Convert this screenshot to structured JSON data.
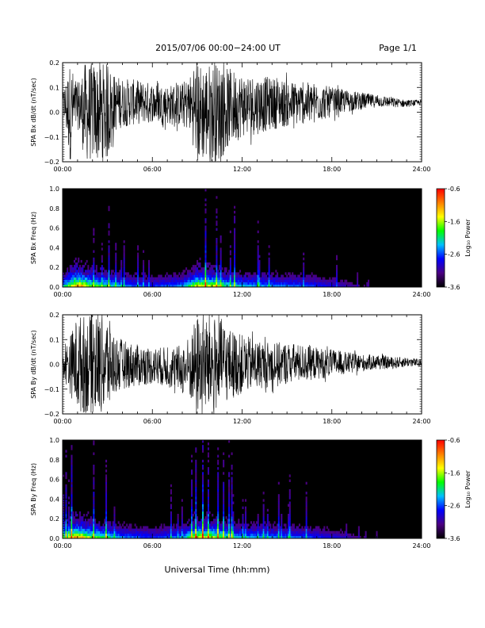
{
  "header": {
    "title": "2015/07/06  00:00−24:00 UT",
    "page": "Page 1/1"
  },
  "xaxis": {
    "label": "Universal Time (hh:mm)",
    "range": [
      0,
      24
    ],
    "ticks": [
      0,
      6,
      12,
      18,
      24
    ],
    "tick_labels": [
      "00:00",
      "06:00",
      "12:00",
      "18:00",
      "24:00"
    ]
  },
  "colorbar": {
    "label": "Log₁₀ Power",
    "range": [
      -3.6,
      -0.6
    ],
    "tick_labels": [
      "-0.6",
      "-1.6",
      "-2.6",
      "-3.6"
    ],
    "colors": [
      "#000000",
      "#4b0082",
      "#0000ff",
      "#00bfff",
      "#00ff00",
      "#ffff00",
      "#ff8000",
      "#ff0000"
    ]
  },
  "chart_data": [
    {
      "type": "line",
      "title": "",
      "ylabel": "SPA Bx dB/dt (nT/sec)",
      "xlabel": "",
      "xlim": [
        0,
        24
      ],
      "ylim": [
        -0.2,
        0.2
      ],
      "yticks": [
        -0.2,
        -0.1,
        0.0,
        0.1,
        0.2
      ],
      "ytick_labels": [
        "−0.2",
        "−0.1",
        "0.0",
        "0.1",
        "0.2"
      ],
      "envelope": {
        "x": [
          0.0,
          0.5,
          1.0,
          1.5,
          2.0,
          2.5,
          3.0,
          3.5,
          4.0,
          5.0,
          6.0,
          7.0,
          8.0,
          8.5,
          9.0,
          9.5,
          10.0,
          10.5,
          11.0,
          12.0,
          13.0,
          14.0,
          15.0,
          16.0,
          17.0,
          18.0,
          19.0,
          20.0,
          21.0,
          22.0,
          23.0,
          24.0
        ],
        "high": [
          0.08,
          0.2,
          0.12,
          0.2,
          0.2,
          0.2,
          0.2,
          0.15,
          0.14,
          0.13,
          0.12,
          0.11,
          0.12,
          0.15,
          0.2,
          0.2,
          0.2,
          0.2,
          0.18,
          0.16,
          0.15,
          0.14,
          0.13,
          0.12,
          0.12,
          0.1,
          0.09,
          0.08,
          0.07,
          0.06,
          0.05,
          0.05
        ],
        "low": [
          0.0,
          -0.2,
          -0.06,
          -0.2,
          -0.2,
          -0.2,
          -0.2,
          -0.08,
          -0.06,
          -0.05,
          -0.04,
          -0.05,
          -0.06,
          -0.08,
          -0.2,
          -0.2,
          -0.2,
          -0.2,
          -0.15,
          -0.1,
          -0.09,
          -0.07,
          -0.06,
          -0.05,
          -0.04,
          -0.02,
          0.0,
          0.01,
          0.02,
          0.02,
          0.02,
          0.03
        ]
      }
    },
    {
      "type": "heatmap",
      "title": "",
      "ylabel": "SPA Bx Freq (Hz)",
      "xlabel": "",
      "xlim": [
        0,
        24
      ],
      "ylim": [
        0.0,
        1.0
      ],
      "yticks": [
        0.0,
        0.2,
        0.4,
        0.6,
        0.8,
        1.0
      ],
      "ytick_labels": [
        "0.0",
        "0.2",
        "0.4",
        "0.6",
        "0.8",
        "1.0"
      ],
      "zlim": [
        -3.6,
        -0.6
      ],
      "activity": {
        "x": [
          0,
          1,
          1.5,
          2,
          3,
          4,
          6,
          8,
          9,
          10,
          11,
          12,
          14,
          16,
          18,
          20,
          24
        ],
        "level": [
          0.5,
          1.0,
          0.85,
          0.7,
          0.6,
          0.45,
          0.35,
          0.45,
          0.85,
          0.8,
          0.6,
          0.5,
          0.45,
          0.4,
          0.3,
          0.15,
          0.05
        ]
      }
    },
    {
      "type": "line",
      "title": "",
      "ylabel": "SPA By dB/dt (nT/sec)",
      "xlabel": "",
      "xlim": [
        0,
        24
      ],
      "ylim": [
        -0.2,
        0.2
      ],
      "yticks": [
        -0.2,
        -0.1,
        0.0,
        0.1,
        0.2
      ],
      "ytick_labels": [
        "−0.2",
        "−0.1",
        "0.0",
        "0.1",
        "0.2"
      ],
      "envelope": {
        "x": [
          0.0,
          0.5,
          1.0,
          1.5,
          2.0,
          2.5,
          3.0,
          3.5,
          4.0,
          5.0,
          6.0,
          7.0,
          8.0,
          8.5,
          9.0,
          9.5,
          10.0,
          10.5,
          11.0,
          12.0,
          13.0,
          14.0,
          15.0,
          16.0,
          17.0,
          18.0,
          19.0,
          20.0,
          21.0,
          22.0,
          23.0,
          24.0
        ],
        "high": [
          0.05,
          0.12,
          0.2,
          0.2,
          0.2,
          0.2,
          0.2,
          0.12,
          0.1,
          0.08,
          0.07,
          0.07,
          0.08,
          0.12,
          0.2,
          0.2,
          0.2,
          0.18,
          0.15,
          0.12,
          0.1,
          0.09,
          0.09,
          0.08,
          0.07,
          0.06,
          0.05,
          0.04,
          0.04,
          0.03,
          0.03,
          0.02
        ],
        "low": [
          -0.05,
          -0.12,
          -0.2,
          -0.2,
          -0.2,
          -0.2,
          -0.2,
          -0.12,
          -0.1,
          -0.09,
          -0.08,
          -0.09,
          -0.12,
          -0.15,
          -0.2,
          -0.2,
          -0.2,
          -0.18,
          -0.15,
          -0.12,
          -0.1,
          -0.09,
          -0.08,
          -0.07,
          -0.06,
          -0.05,
          -0.04,
          -0.03,
          -0.02,
          -0.02,
          -0.01,
          -0.01
        ]
      }
    },
    {
      "type": "heatmap",
      "title": "",
      "ylabel": "SPA By Freq (Hz)",
      "xlabel": "Universal Time (hh:mm)",
      "xlim": [
        0,
        24
      ],
      "ylim": [
        0.0,
        1.0
      ],
      "yticks": [
        0.0,
        0.2,
        0.4,
        0.6,
        0.8,
        1.0
      ],
      "ytick_labels": [
        "0.0",
        "0.2",
        "0.4",
        "0.6",
        "0.8",
        "1.0"
      ],
      "zlim": [
        -3.6,
        -0.6
      ],
      "activity": {
        "x": [
          0,
          1,
          1.5,
          2,
          3,
          4,
          6,
          8,
          9,
          10,
          11,
          12,
          14,
          16,
          18,
          20,
          24
        ],
        "level": [
          0.55,
          1.0,
          0.85,
          0.7,
          0.6,
          0.45,
          0.35,
          0.45,
          0.85,
          0.8,
          0.6,
          0.5,
          0.45,
          0.4,
          0.3,
          0.15,
          0.05
        ]
      }
    }
  ]
}
